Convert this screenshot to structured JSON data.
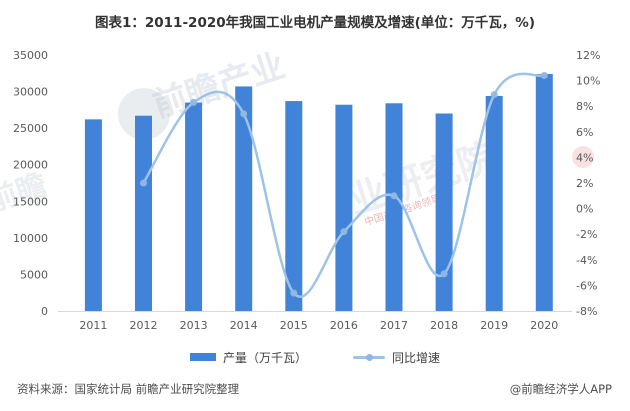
{
  "title": "图表1：2011-2020年我国工业电机产量规模及增速(单位：万千瓦，%)",
  "chart_data": {
    "type": "bar",
    "subtype": "bar-line-combo",
    "categories": [
      "2011",
      "2012",
      "2013",
      "2014",
      "2015",
      "2016",
      "2017",
      "2018",
      "2019",
      "2020"
    ],
    "series": [
      {
        "name": "产量（万千瓦）",
        "type": "bar",
        "axis": "left",
        "color": "#4083D8",
        "values": [
          26200,
          26700,
          28500,
          30700,
          28700,
          28200,
          28400,
          27000,
          29400,
          32400
        ]
      },
      {
        "name": "同比增速",
        "type": "line",
        "axis": "right",
        "color": "#9DC3E8",
        "marker_color": "#8FB8E4",
        "values": [
          null,
          2.0,
          8.3,
          7.4,
          -6.6,
          -1.8,
          1.0,
          -5.1,
          8.9,
          10.4
        ]
      }
    ],
    "left_axis": {
      "min": 0,
      "max": 35000,
      "step": 5000,
      "tick_labels": [
        "0",
        "5000",
        "10000",
        "15000",
        "20000",
        "25000",
        "30000",
        "35000"
      ]
    },
    "right_axis": {
      "min": -8,
      "max": 12,
      "step": 2,
      "tick_labels": [
        "-8%",
        "-6%",
        "-4%",
        "-2%",
        "0%",
        "2%",
        "4%",
        "6%",
        "8%",
        "10%",
        "12%"
      ]
    },
    "grid": false,
    "legend_position": "bottom",
    "title": "图表1：2011-2020年我国工业电机产量规模及增速(单位：万千瓦，%)",
    "axis_label_color": "#595959",
    "axis_line_color": "#D9D9D9"
  },
  "legend": {
    "bar_label": "产量（万千瓦）",
    "line_label": "同比增速"
  },
  "footer": {
    "source": "资料来源：国家统计局 前瞻产业研究院整理",
    "credit": "@前瞻经济学人APP"
  },
  "watermarks": {
    "wm1": "前瞻产业",
    "wm2": "业研究院",
    "wm3": "前瞻",
    "wm4": "中国产业咨询领导者"
  }
}
